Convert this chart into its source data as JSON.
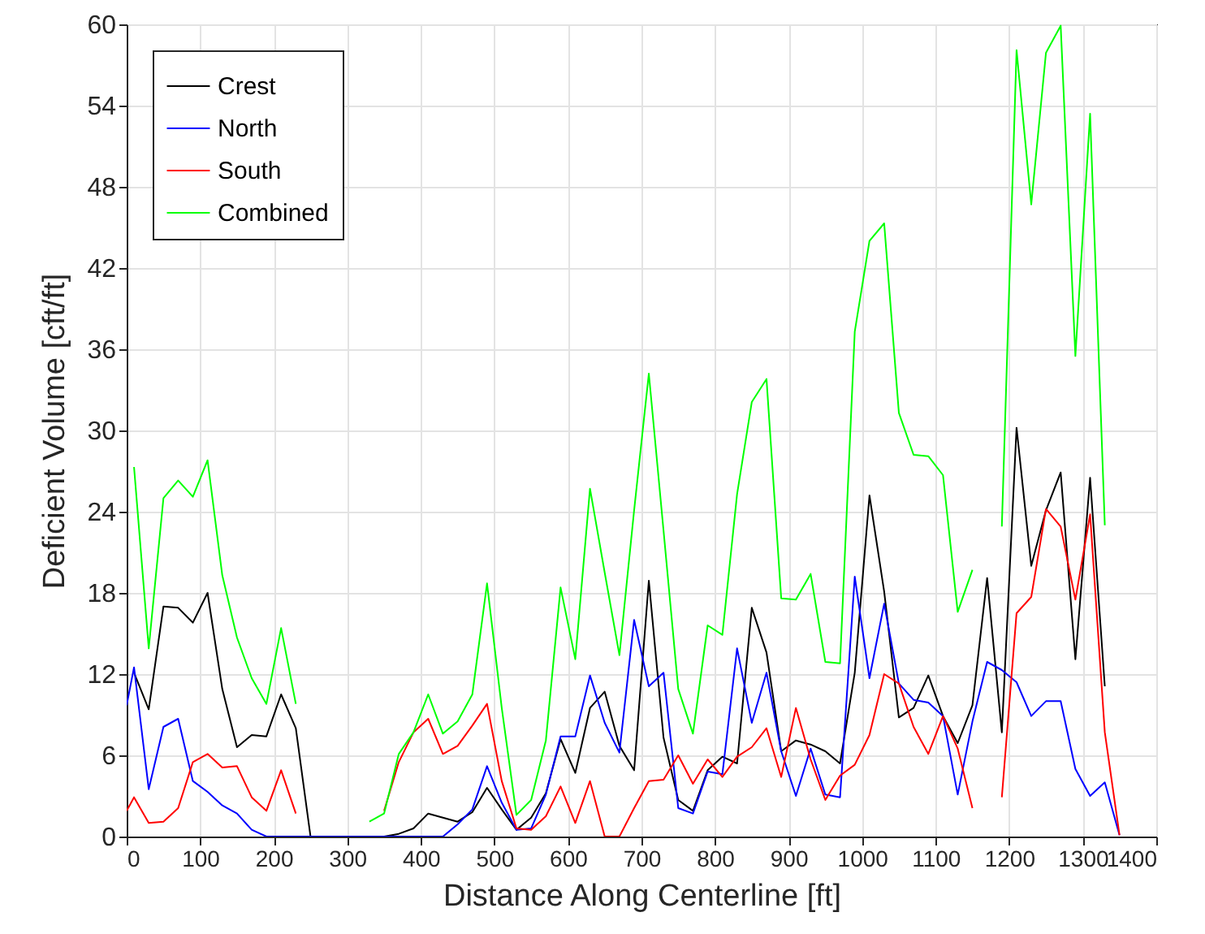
{
  "chart_data": {
    "type": "line",
    "xlabel": "Distance Along Centerline [ft]",
    "ylabel": "Deficient Volume [cft/ft]",
    "x": [
      0,
      10,
      30,
      50,
      70,
      90,
      110,
      130,
      150,
      170,
      190,
      210,
      230,
      250,
      270,
      290,
      310,
      330,
      350,
      370,
      390,
      410,
      430,
      450,
      470,
      490,
      510,
      530,
      550,
      570,
      590,
      610,
      630,
      650,
      670,
      690,
      710,
      730,
      750,
      770,
      790,
      810,
      830,
      850,
      870,
      890,
      910,
      930,
      950,
      970,
      990,
      1010,
      1030,
      1050,
      1070,
      1090,
      1110,
      1130,
      1150,
      1170,
      1190,
      1210,
      1230,
      1250,
      1270,
      1290,
      1310,
      1330,
      1350
    ],
    "series": [
      {
        "name": "Crest",
        "color": "#000000",
        "values": [
          null,
          12.1,
          9.4,
          17.0,
          16.9,
          15.8,
          18.0,
          10.9,
          6.6,
          7.5,
          7.4,
          10.5,
          8.0,
          0,
          0,
          0,
          0,
          0,
          0,
          0.2,
          0.6,
          1.7,
          1.4,
          1.1,
          1.8,
          3.6,
          2.0,
          0.5,
          1.4,
          3.2,
          7.2,
          4.7,
          9.5,
          10.7,
          6.7,
          4.9,
          18.9,
          7.3,
          2.7,
          1.9,
          4.9,
          5.9,
          5.4,
          16.9,
          13.6,
          6.3,
          7.1,
          6.8,
          6.3,
          5.4,
          12.1,
          25.2,
          18.1,
          8.8,
          9.5,
          11.9,
          8.9,
          6.9,
          9.7,
          19.1,
          7.7,
          30.2,
          20.0,
          24.1,
          26.9,
          13.1,
          26.5,
          11.1,
          null
        ]
      },
      {
        "name": "North",
        "color": "#0000ff",
        "values": [
          9.7,
          12.5,
          3.5,
          8.1,
          8.7,
          4.1,
          3.3,
          2.3,
          1.7,
          0.5,
          0,
          0,
          0,
          0,
          0,
          0,
          0,
          0,
          0,
          0,
          0,
          0,
          0,
          0.9,
          2.0,
          5.2,
          2.5,
          0.5,
          0.6,
          3.1,
          7.4,
          7.4,
          11.9,
          8.4,
          6.2,
          16.0,
          11.1,
          12.1,
          2.1,
          1.7,
          4.8,
          4.6,
          13.9,
          8.4,
          12.1,
          6.3,
          3.0,
          6.5,
          3.1,
          2.9,
          19.2,
          11.7,
          17.2,
          11.3,
          10.1,
          9.9,
          8.9,
          3.1,
          8.5,
          12.9,
          12.3,
          11.4,
          8.9,
          10.0,
          10.0,
          5.0,
          3.0,
          4.0,
          0.1
        ]
      },
      {
        "name": "South",
        "color": "#ff0000",
        "values": [
          1.9,
          2.9,
          1.0,
          1.1,
          2.1,
          5.5,
          6.1,
          5.1,
          5.2,
          2.9,
          1.9,
          4.9,
          1.7,
          null,
          null,
          null,
          null,
          null,
          1.9,
          5.5,
          7.7,
          8.7,
          6.1,
          6.7,
          8.2,
          9.8,
          4.1,
          0.6,
          0.5,
          1.5,
          3.7,
          1.0,
          4.1,
          0,
          0,
          2.1,
          4.1,
          4.2,
          6.0,
          3.9,
          5.7,
          4.4,
          5.9,
          6.6,
          8.0,
          4.4,
          9.5,
          5.7,
          2.7,
          4.5,
          5.3,
          7.5,
          12.0,
          11.3,
          8.1,
          6.1,
          8.9,
          6.5,
          2.1,
          null,
          2.9,
          16.5,
          17.7,
          24.2,
          22.9,
          17.5,
          23.8,
          7.7,
          0.1
        ]
      },
      {
        "name": "Combined",
        "color": "#00ff00",
        "values": [
          null,
          27.3,
          13.9,
          25.0,
          26.3,
          25.1,
          27.8,
          19.3,
          14.7,
          11.7,
          9.8,
          15.4,
          9.8,
          null,
          null,
          null,
          null,
          1.1,
          1.7,
          6.1,
          7.7,
          10.5,
          7.6,
          8.5,
          10.5,
          18.7,
          9.5,
          1.6,
          2.7,
          7.1,
          18.4,
          13.1,
          25.7,
          19.5,
          13.4,
          24.1,
          34.2,
          22.6,
          10.9,
          7.6,
          15.6,
          14.9,
          25.3,
          32.1,
          33.8,
          17.6,
          17.5,
          19.4,
          12.9,
          12.8,
          37.3,
          44.0,
          45.3,
          31.3,
          28.2,
          28.1,
          26.7,
          16.6,
          19.7,
          null,
          22.9,
          58.1,
          46.7,
          57.9,
          59.9,
          35.5,
          53.4,
          23.0,
          null
        ]
      }
    ],
    "xlim": [
      0,
      1400
    ],
    "xticks": [
      0,
      100,
      200,
      300,
      400,
      500,
      600,
      700,
      800,
      900,
      1000,
      1100,
      1200,
      1300,
      1400
    ],
    "ylim": [
      0,
      60
    ],
    "yticks": [
      0,
      6,
      12,
      18,
      24,
      30,
      36,
      42,
      48,
      54,
      60
    ],
    "grid": true,
    "legend": "top left"
  }
}
